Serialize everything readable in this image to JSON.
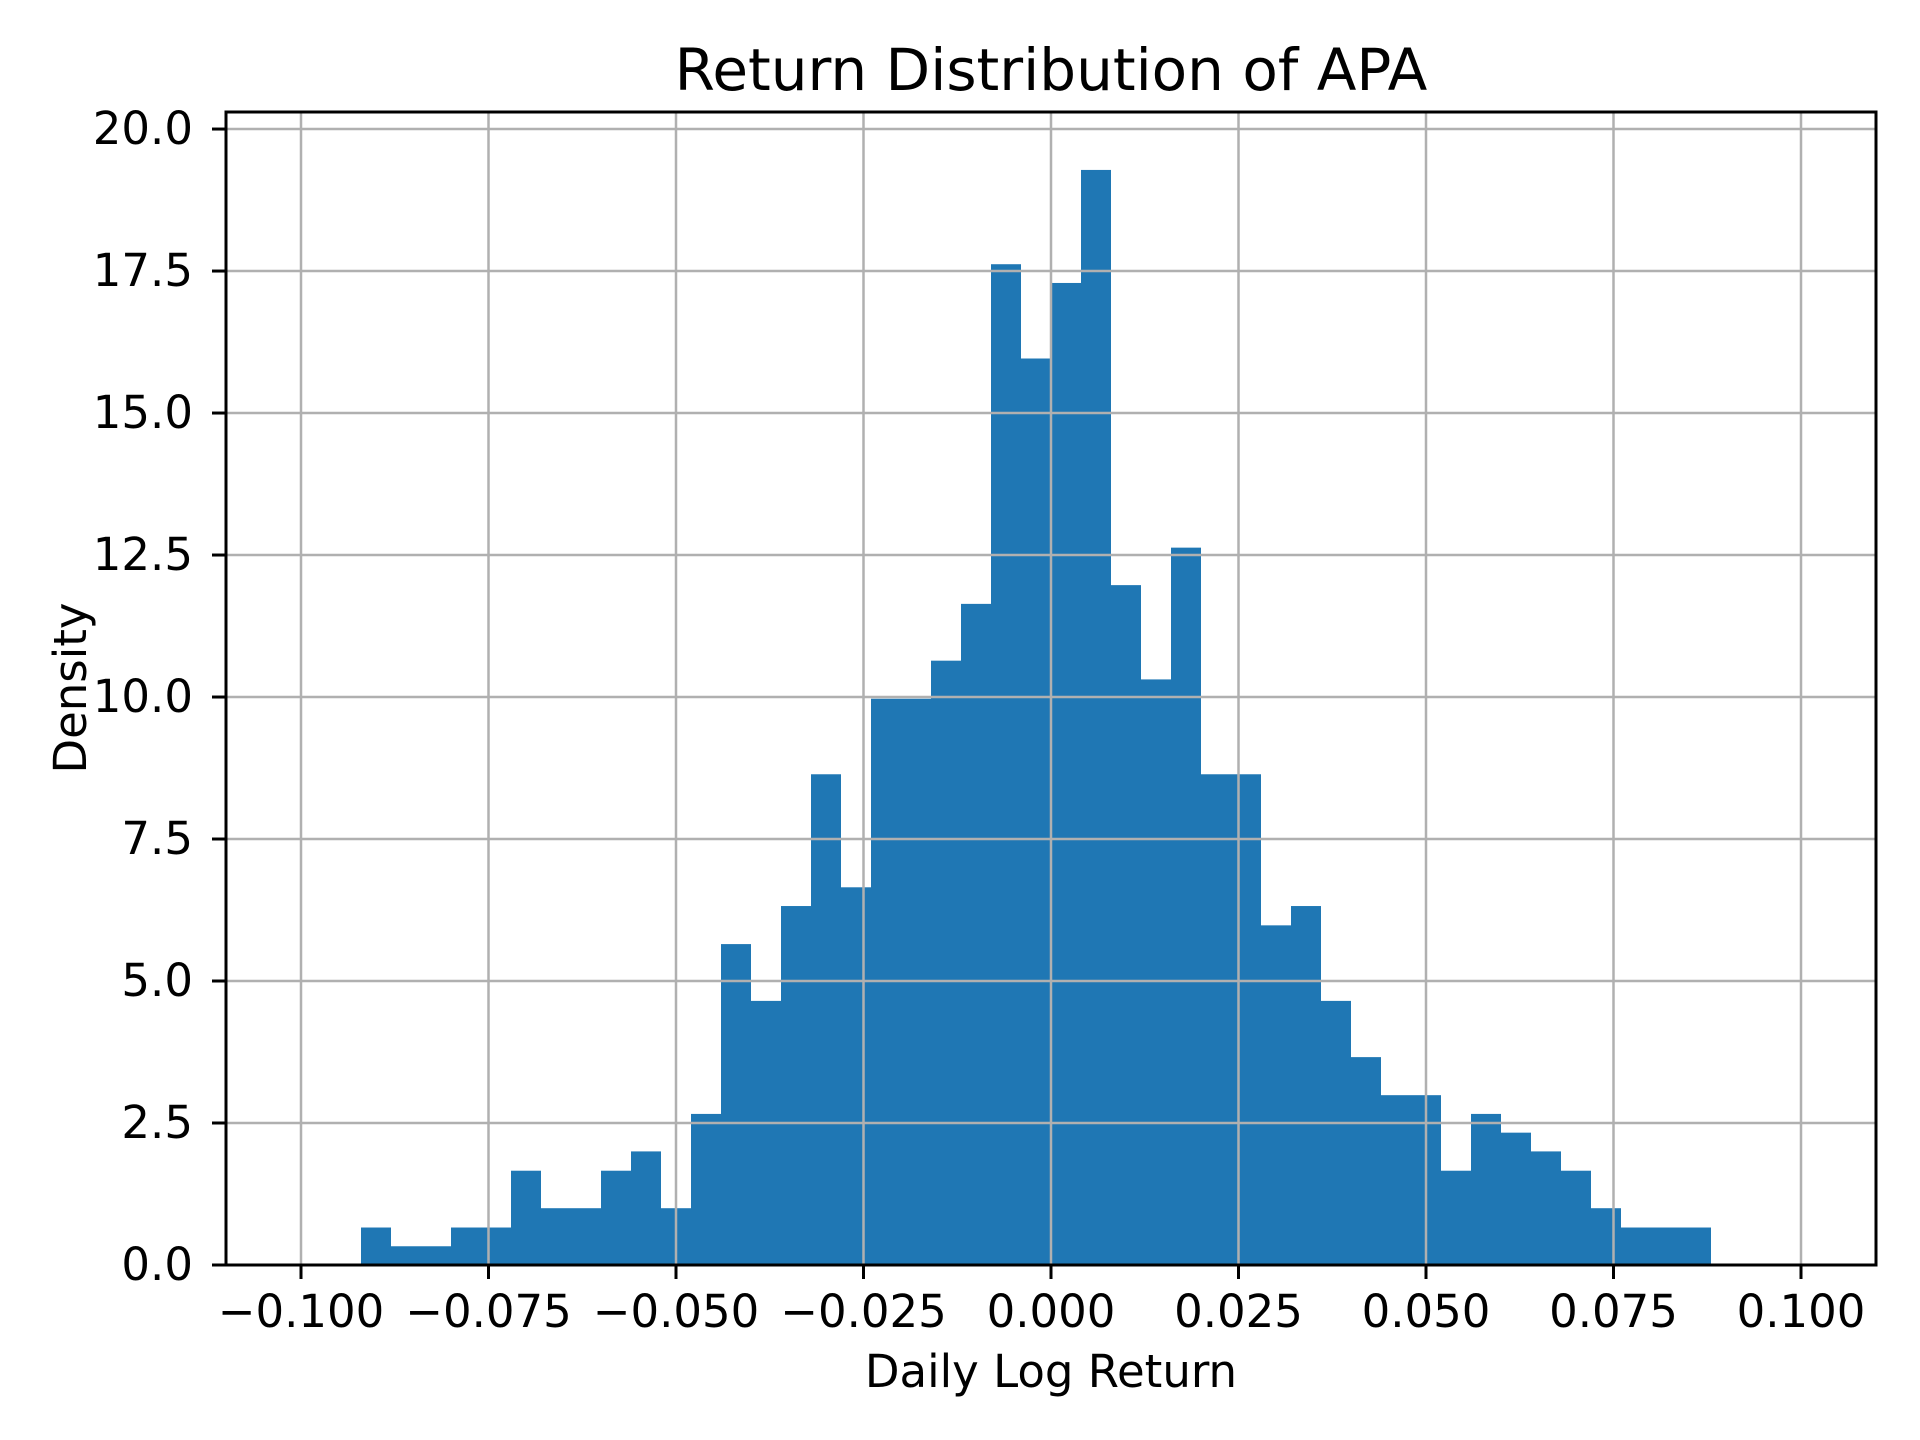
{
  "chart_data": {
    "type": "bar",
    "subtype": "histogram",
    "title": "Return Distribution of APA",
    "xlabel": "Daily Log Return",
    "ylabel": "Density",
    "bar_color": "#1f77b4",
    "grid": true,
    "grid_color": "#b0b0b0",
    "frame_color": "#000000",
    "background_color": "#ffffff",
    "legend": "none",
    "xlim": [
      -0.11,
      0.11
    ],
    "ylim": [
      0,
      20.3
    ],
    "bin_start": -0.092,
    "bin_width": 0.004,
    "densities": [
      0.66,
      0.33,
      0.33,
      0.66,
      0.66,
      1.66,
      1.0,
      1.0,
      1.66,
      2.0,
      1.0,
      2.66,
      5.65,
      4.65,
      6.32,
      8.64,
      6.65,
      9.97,
      9.97,
      10.64,
      11.64,
      17.62,
      15.96,
      17.29,
      19.28,
      11.97,
      10.31,
      12.63,
      8.64,
      8.64,
      5.98,
      6.32,
      4.65,
      3.66,
      2.99,
      2.99,
      1.66,
      2.66,
      2.33,
      2.0,
      1.66,
      1.0,
      0.66,
      0.66,
      0.66
    ],
    "xticks": {
      "values": [
        -0.1,
        -0.075,
        -0.05,
        -0.025,
        0,
        0.025,
        0.05,
        0.075,
        0.1
      ],
      "labels": [
        "−0.100",
        "−0.075",
        "−0.050",
        "−0.025",
        "0.000",
        "0.025",
        "0.050",
        "0.075",
        "0.100"
      ]
    },
    "yticks": {
      "values": [
        0,
        2.5,
        5,
        7.5,
        10,
        12.5,
        15,
        17.5,
        20
      ],
      "labels": [
        "0.0",
        "2.5",
        "5.0",
        "7.5",
        "10.0",
        "12.5",
        "15.0",
        "17.5",
        "20.0"
      ]
    }
  }
}
